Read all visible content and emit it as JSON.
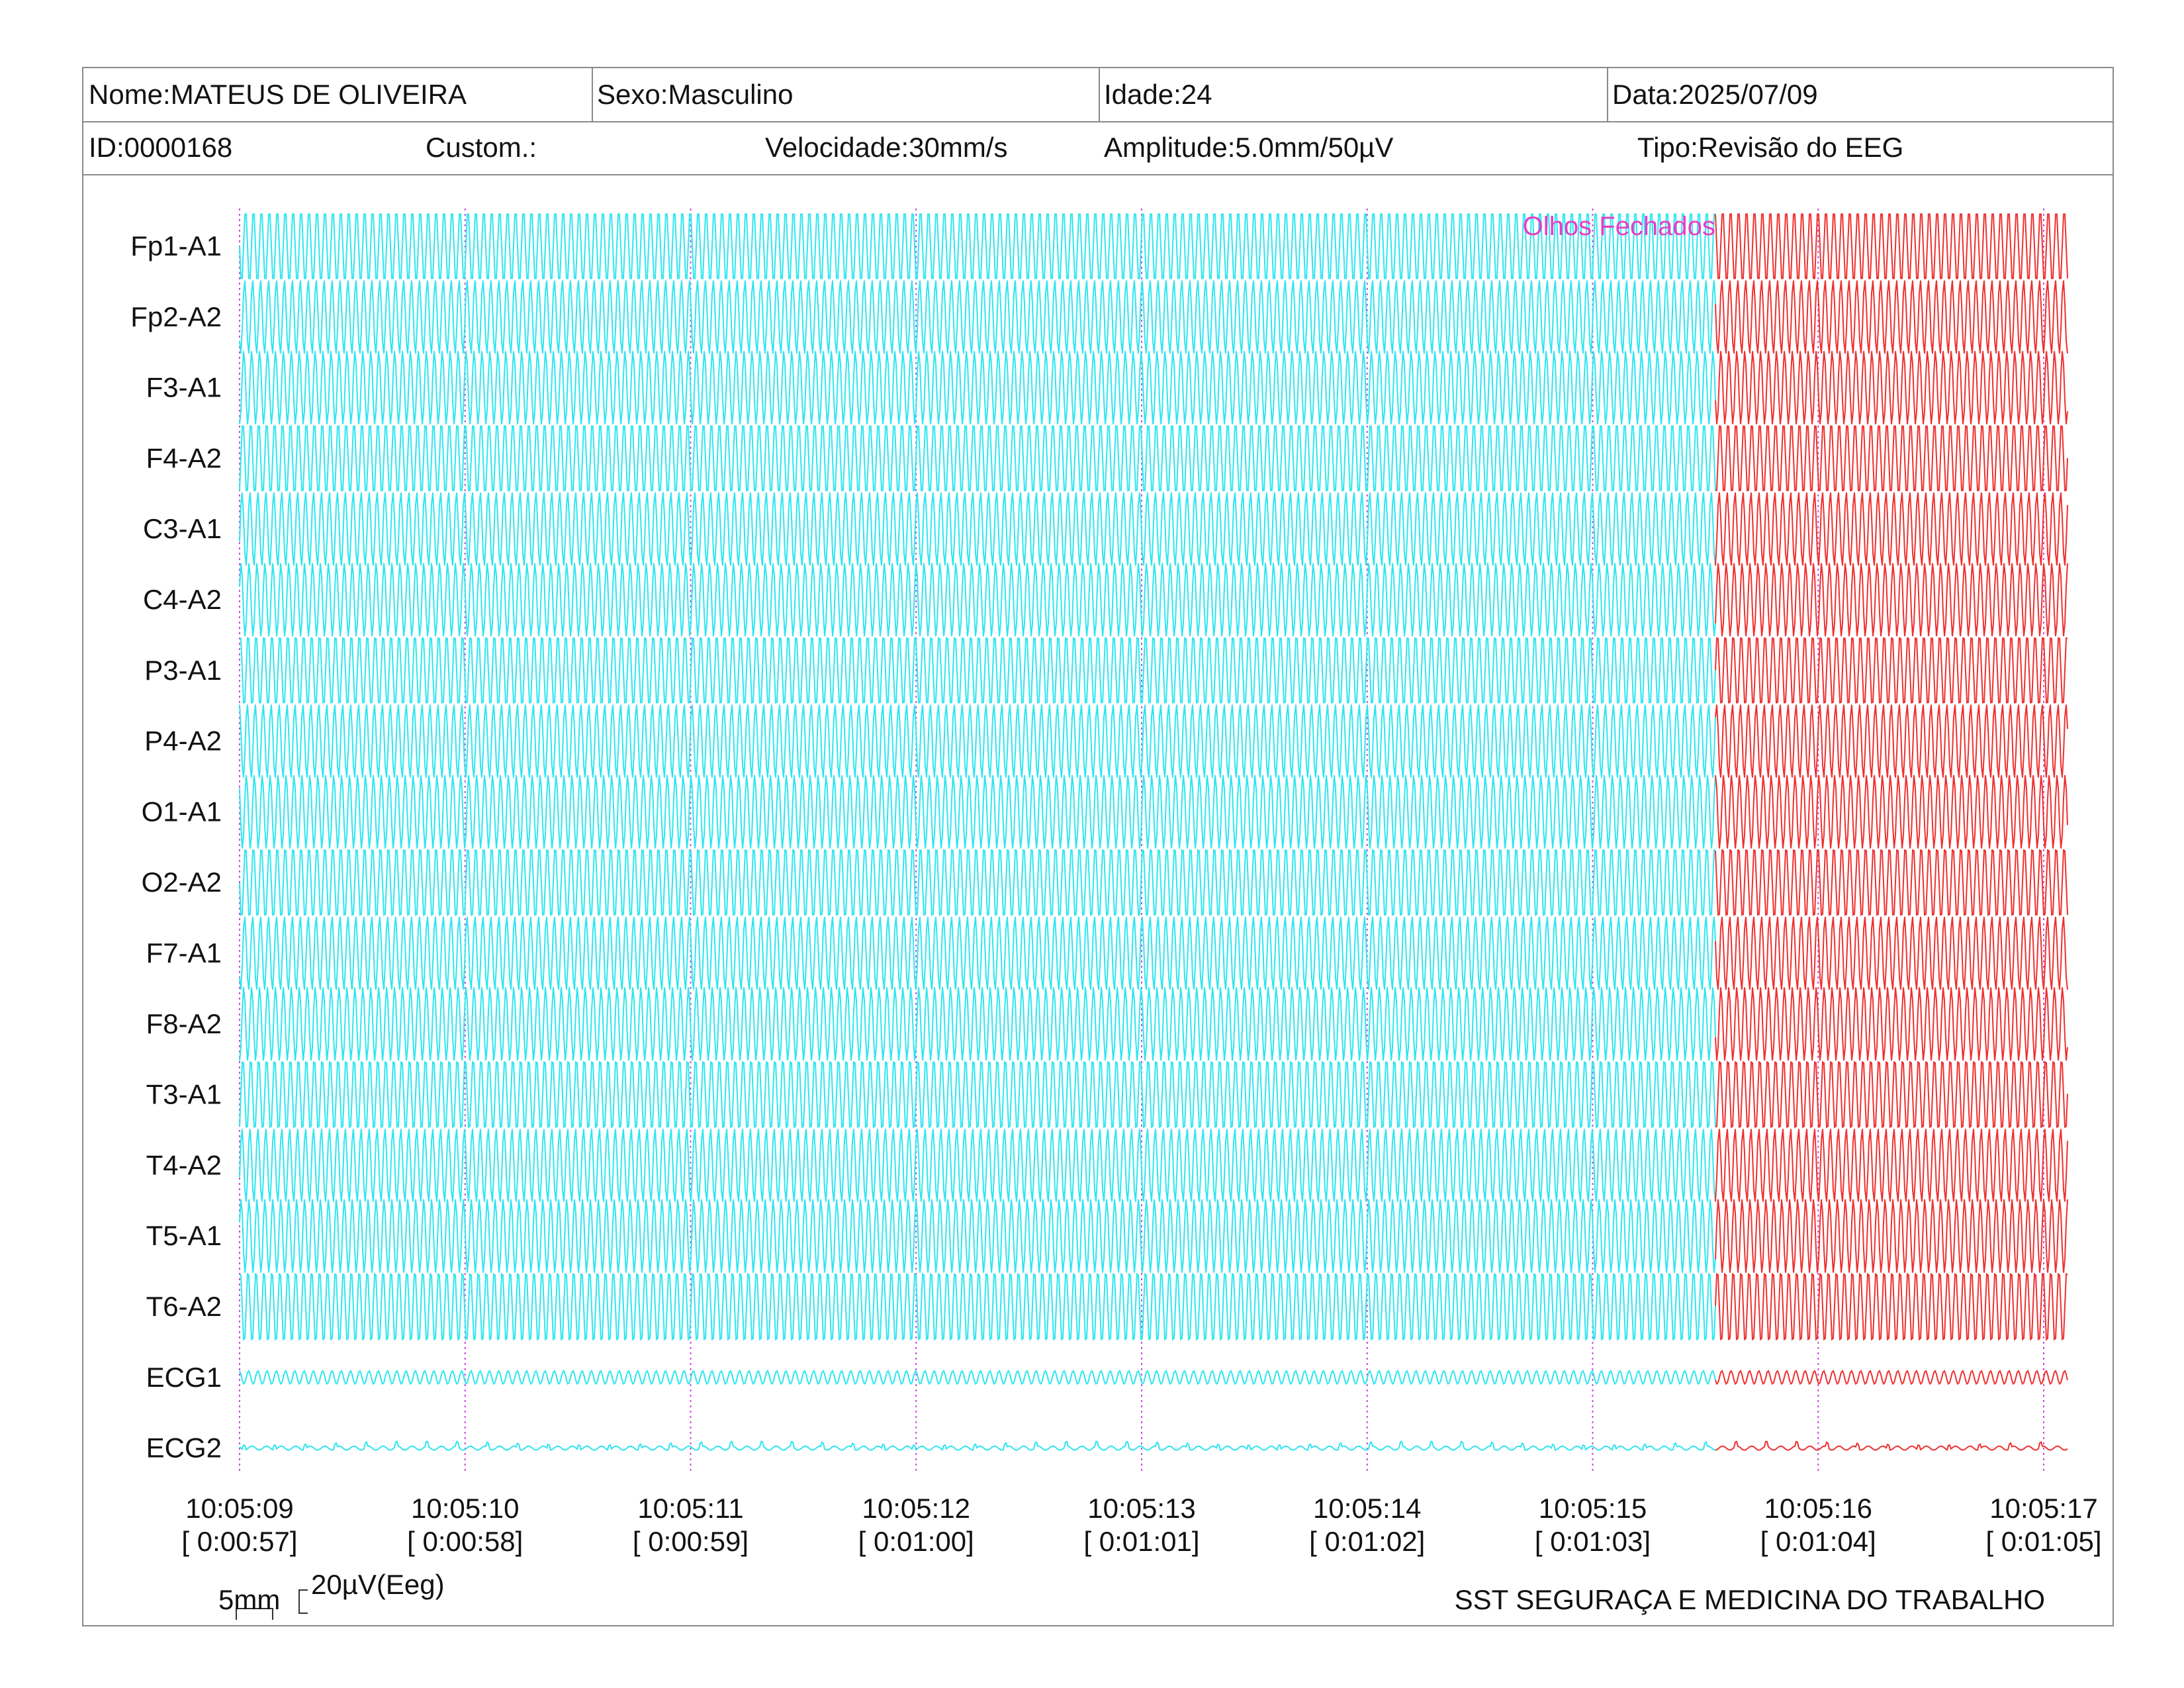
{
  "header": {
    "nome": "Nome:MATEUS DE OLIVEIRA",
    "sexo": "Sexo:Masculino",
    "idade": "Idade:24",
    "data": "Data:2025/07/09",
    "id": "ID:0000168",
    "custom": "Custom.:",
    "velocidade": "Velocidade:30mm/s",
    "amplitude": "Amplitude:5.0mm/50µV",
    "tipo": "Tipo:Revisão do EEG"
  },
  "chart_data": {
    "type": "line",
    "annotation": "Olhos Fechados",
    "annotation_time_index": 6.55,
    "channels": [
      "Fp1-A1",
      "Fp2-A2",
      "F3-A1",
      "F4-A2",
      "C3-A1",
      "C4-A2",
      "P3-A1",
      "P4-A2",
      "O1-A1",
      "O2-A2",
      "F7-A1",
      "F8-A2",
      "T3-A1",
      "T4-A2",
      "T5-A1",
      "T6-A2",
      "ECG1",
      "ECG2"
    ],
    "time_ticks": [
      {
        "clock": "10:05:09",
        "elapsed": "[ 0:00:57]"
      },
      {
        "clock": "10:05:10",
        "elapsed": "[ 0:00:58]"
      },
      {
        "clock": "10:05:11",
        "elapsed": "[ 0:00:59]"
      },
      {
        "clock": "10:05:12",
        "elapsed": "[ 0:01:00]"
      },
      {
        "clock": "10:05:13",
        "elapsed": "[ 0:01:01]"
      },
      {
        "clock": "10:05:14",
        "elapsed": "[ 0:01:02]"
      },
      {
        "clock": "10:05:15",
        "elapsed": "[ 0:01:03]"
      },
      {
        "clock": "10:05:16",
        "elapsed": "[ 0:01:04]"
      },
      {
        "clock": "10:05:17",
        "elapsed": "[ 0:01:05]"
      }
    ],
    "colors": {
      "before": "#2ee6ef",
      "after": "#ee3030",
      "annotation": "#e43ec8",
      "gridline": "#c84bd8"
    }
  },
  "scale_bar": {
    "time_label": "5mm",
    "amp_label": "20µV(Eeg)"
  },
  "footer": {
    "company": "SST SEGURAÇA E MEDICINA DO TRABALHO"
  }
}
